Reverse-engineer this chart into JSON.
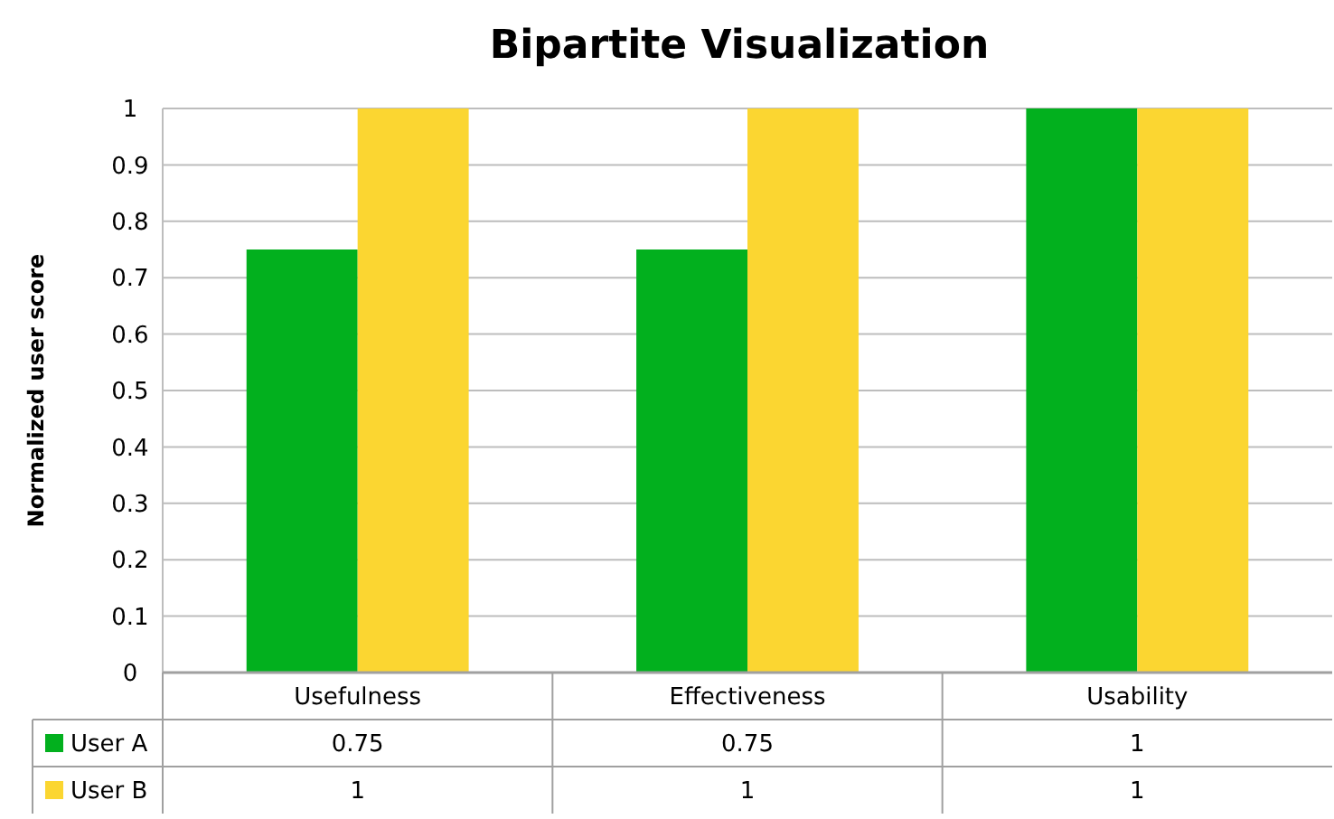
{
  "chart_data": {
    "type": "bar",
    "title": "Bipartite Visualization",
    "ylabel": "Normalized user score",
    "categories": [
      "Usefulness",
      "Effectiveness",
      "Usability"
    ],
    "series": [
      {
        "name": "User A",
        "color": "#02b01e",
        "values": [
          0.75,
          0.75,
          1
        ]
      },
      {
        "name": "User B",
        "color": "#fbd631",
        "values": [
          1,
          1,
          1
        ]
      }
    ],
    "ylim": [
      0,
      1
    ],
    "yticks": [
      0,
      0.1,
      0.2,
      0.3,
      0.4,
      0.5,
      0.6,
      0.7,
      0.8,
      0.9,
      1
    ],
    "grid": "y",
    "legend": "bottom",
    "data_labels": true
  }
}
